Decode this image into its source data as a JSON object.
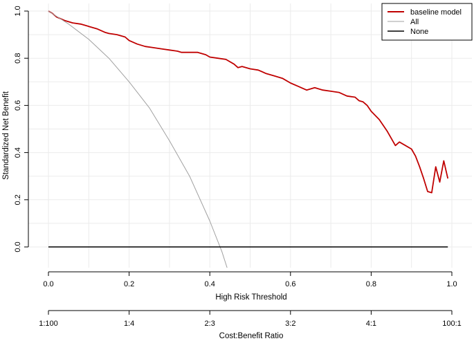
{
  "chart_data": {
    "type": "line",
    "xlabel": "High Risk Threshold",
    "ylabel": "Standardized Net Benefit",
    "x2label": "Cost:Benefit Ratio",
    "xlim": [
      0,
      1
    ],
    "ylim": [
      -0.08,
      1.0
    ],
    "x_ticks": [
      "0.0",
      "0.2",
      "0.4",
      "0.6",
      "0.8",
      "1.0"
    ],
    "y_ticks": [
      "0.0",
      "0.2",
      "0.4",
      "0.6",
      "0.8",
      "1.0"
    ],
    "x2_ticks": [
      "1:100",
      "1:4",
      "2:3",
      "3:2",
      "4:1",
      "100:1"
    ],
    "grid": true,
    "legend_position": "top-right",
    "series": [
      {
        "name": "baseline model",
        "color": "#c00000",
        "x": [
          0.0,
          0.01,
          0.02,
          0.04,
          0.06,
          0.08,
          0.1,
          0.12,
          0.14,
          0.15,
          0.17,
          0.19,
          0.2,
          0.22,
          0.24,
          0.26,
          0.28,
          0.3,
          0.32,
          0.33,
          0.35,
          0.37,
          0.39,
          0.4,
          0.42,
          0.44,
          0.46,
          0.47,
          0.48,
          0.5,
          0.52,
          0.54,
          0.56,
          0.58,
          0.6,
          0.62,
          0.64,
          0.66,
          0.68,
          0.7,
          0.72,
          0.74,
          0.76,
          0.77,
          0.78,
          0.79,
          0.8,
          0.82,
          0.84,
          0.86,
          0.87,
          0.88,
          0.9,
          0.91,
          0.92,
          0.93,
          0.94,
          0.95,
          0.96,
          0.97,
          0.98,
          0.99
        ],
        "y": [
          1.0,
          0.99,
          0.975,
          0.96,
          0.95,
          0.945,
          0.935,
          0.925,
          0.91,
          0.905,
          0.9,
          0.89,
          0.875,
          0.86,
          0.85,
          0.845,
          0.84,
          0.835,
          0.83,
          0.825,
          0.825,
          0.825,
          0.815,
          0.805,
          0.8,
          0.795,
          0.775,
          0.76,
          0.765,
          0.755,
          0.75,
          0.735,
          0.725,
          0.715,
          0.695,
          0.68,
          0.665,
          0.675,
          0.665,
          0.66,
          0.655,
          0.64,
          0.635,
          0.62,
          0.615,
          0.6,
          0.575,
          0.54,
          0.49,
          0.43,
          0.445,
          0.435,
          0.415,
          0.385,
          0.34,
          0.29,
          0.235,
          0.23,
          0.34,
          0.275,
          0.365,
          0.29
        ]
      },
      {
        "name": "All",
        "color": "#a0a0a0",
        "x": [
          0.0,
          0.05,
          0.1,
          0.15,
          0.2,
          0.25,
          0.3,
          0.35,
          0.4,
          0.43,
          0.46,
          0.48
        ],
        "y": [
          1.0,
          0.945,
          0.88,
          0.8,
          0.7,
          0.59,
          0.45,
          0.3,
          0.11,
          -0.02,
          -0.18,
          -0.29
        ]
      },
      {
        "name": "None",
        "color": "#000000",
        "x": [
          0.0,
          0.99
        ],
        "y": [
          0.0,
          0.0
        ]
      }
    ]
  }
}
